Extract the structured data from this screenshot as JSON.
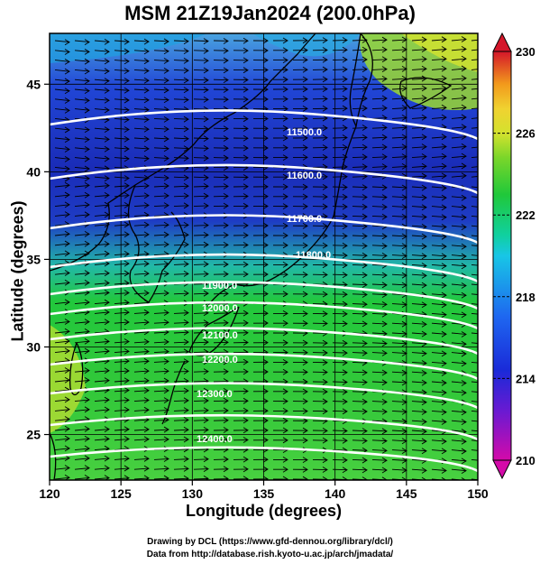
{
  "title": "MSM 21Z19Jan2024 (200.0hPa)",
  "xaxis": {
    "label": "Longitude (degrees)",
    "ticks": [
      "120",
      "125",
      "130",
      "135",
      "140",
      "145",
      "150"
    ]
  },
  "yaxis": {
    "label": "Latitude  (degrees)",
    "ticks": [
      "25",
      "30",
      "35",
      "40",
      "45"
    ]
  },
  "colorbar": {
    "ticks": [
      "230",
      "226",
      "222",
      "218",
      "214",
      "210"
    ],
    "colors": [
      "#d40aa9",
      "#6a1ad2",
      "#1a2ad8",
      "#1e66f0",
      "#18c6e6",
      "#10d0a0",
      "#20c83a",
      "#7ad62a",
      "#d4e22e",
      "#f0d230",
      "#f29a1c",
      "#e3461a",
      "#d4162a"
    ]
  },
  "contour_labels": [
    "11500.0",
    "11600.0",
    "11700.0",
    "11800.0",
    "11900.0",
    "12000.0",
    "12100.0",
    "12200.0",
    "12300.0",
    "12400.0"
  ],
  "credits": [
    "Drawing by DCL (https://www.gfd-dennou.org/library/dcl/)",
    "Data from http://database.rish.kyoto-u.ac.jp/arch/jmadata/"
  ]
}
